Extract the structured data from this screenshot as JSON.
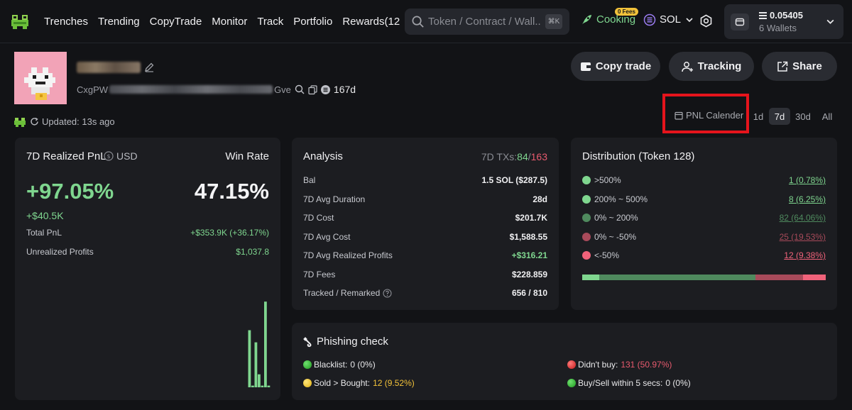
{
  "nav": {
    "items": [
      "Trenches",
      "Trending",
      "CopyTrade",
      "Monitor",
      "Track",
      "Portfolio",
      "Rewards(12"
    ],
    "search_placeholder": "Token / Contract / Wall...",
    "search_shortcut": "⌘K",
    "cooking_label": "Cooking",
    "fees_badge": "0 Fees",
    "chain_label": "SOL",
    "wallet_balance": "0.05405",
    "wallet_count": "6 Wallets"
  },
  "profile": {
    "address_prefix": "CxgPW",
    "address_suffix": "Gve",
    "age": "167d",
    "updated": "Updated: 13s ago",
    "buttons": {
      "copy_trade": "Copy trade",
      "tracking": "Tracking",
      "share": "Share"
    },
    "pnl_calendar": "PNL Calender",
    "periods": [
      "1d",
      "7d",
      "30d",
      "All"
    ],
    "active_period": "7d"
  },
  "pnl": {
    "title": "7D Realized PnL",
    "currency": "USD",
    "winrate_label": "Win Rate",
    "percent": "+97.05%",
    "winrate": "47.15%",
    "usd_value": "+$40.5K",
    "total_pnl_label": "Total PnL",
    "total_pnl_value": "+$353.9K (+36.17%)",
    "unrealized_label": "Unrealized Profits",
    "unrealized_value": "$1,037.8"
  },
  "chart_data": {
    "type": "bar",
    "title": "",
    "values": [
      0,
      0,
      0,
      0,
      0,
      0,
      0,
      0,
      0,
      0,
      0,
      0,
      0,
      0,
      0,
      0,
      0,
      0,
      0,
      0,
      0,
      0,
      0,
      0,
      0,
      0,
      0,
      0,
      0,
      0,
      0,
      0,
      0,
      0,
      0,
      0,
      0,
      0,
      0,
      0,
      0,
      0,
      0,
      0,
      0,
      0,
      0,
      0,
      0,
      0,
      0,
      0,
      0,
      0,
      0,
      0,
      0,
      0,
      0,
      0,
      0,
      0,
      0,
      0,
      0,
      0,
      0,
      0,
      0,
      0,
      66,
      2,
      52,
      15,
      2,
      99,
      2
    ],
    "ylim": [
      0,
      100
    ],
    "xlabel": "",
    "ylabel": ""
  },
  "analysis": {
    "title": "Analysis",
    "tx_label": "7D TXs:",
    "tx_buy": "84",
    "tx_sep": "/",
    "tx_sell": "163",
    "rows": [
      {
        "label": "Bal",
        "value": "1.5 SOL ($287.5)"
      },
      {
        "label": "7D Avg Duration",
        "value": "28d"
      },
      {
        "label": "7D Cost",
        "value": "$201.7K"
      },
      {
        "label": "7D Avg Cost",
        "value": "$1,588.55"
      },
      {
        "label": "7D Avg Realized Profits",
        "value": "+$316.21"
      },
      {
        "label": "7D Fees",
        "value": "$228.859"
      },
      {
        "label": "Tracked / Remarked",
        "value": "656 / 810"
      }
    ]
  },
  "distribution": {
    "title": "Distribution (Token 128)",
    "rows": [
      {
        "label": ">500%",
        "value": "1 (0.78%)",
        "color": "#7fd68f",
        "pct": 0.78
      },
      {
        "label": "200% ~ 500%",
        "value": "8 (6.25%)",
        "color": "#7fd68f",
        "pct": 6.25
      },
      {
        "label": "0% ~ 200%",
        "value": "82 (64.06%)",
        "color": "#4f8a5e",
        "pct": 64.06
      },
      {
        "label": "0% ~ -50%",
        "value": "25 (19.53%)",
        "color": "#a84a5a",
        "pct": 19.53
      },
      {
        "label": "<-50%",
        "value": "12 (9.38%)",
        "color": "#f0627a",
        "pct": 9.38
      }
    ]
  },
  "phishing": {
    "title": "Phishing check",
    "blacklist_label": "Blacklist:",
    "blacklist_value": "0 (0%)",
    "didnt_buy_label": "Didn't buy:",
    "didnt_buy_value": "131 (50.97%)",
    "sold_label": "Sold > Bought:",
    "sold_value": "12 (9.52%)",
    "fast_label": "Buy/Sell within 5 secs:",
    "fast_value": "0 (0%)"
  },
  "colors": {
    "accent_green": "#7fd68f",
    "accent_red": "#e85a6e",
    "highlight_box": "#e5141c",
    "bg": "#121316",
    "card": "#1c1d21"
  }
}
